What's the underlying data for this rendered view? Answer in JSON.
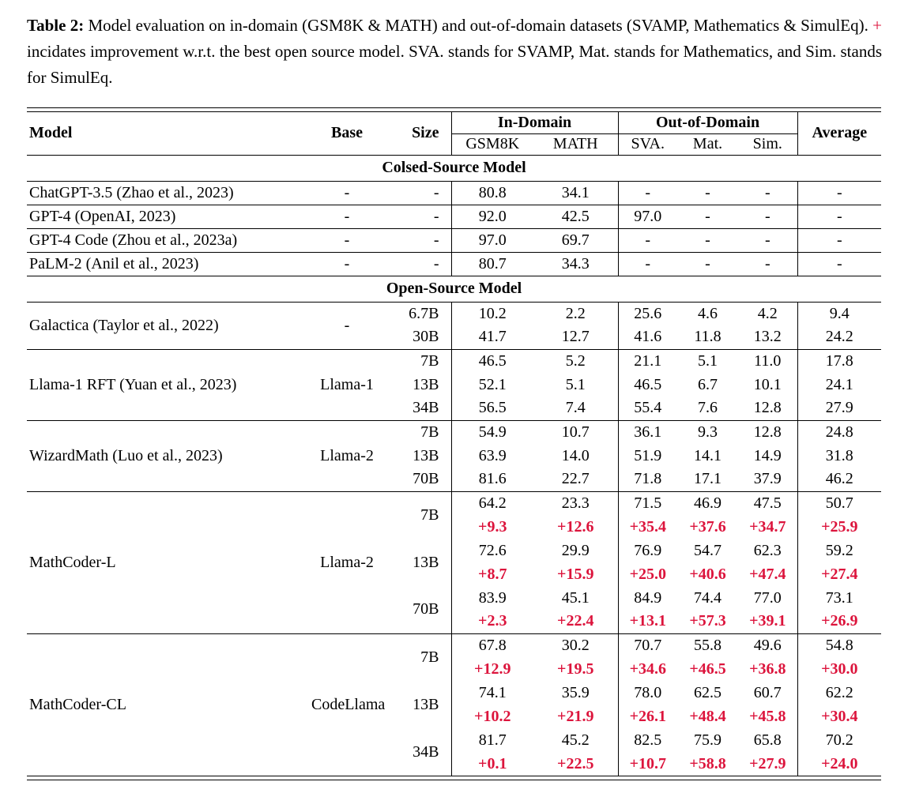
{
  "caption": {
    "label": "Table 2:",
    "before_plus": "Model evaluation on in-domain (GSM8K & MATH) and out-of-domain datasets (SVAMP, Mathematics & SimulEq).",
    "plus": "+",
    "after_plus": "incidates improvement w.r.t. the best open source model. SVA. stands for SVAMP, Mat. stands for Mathematics, and Sim. stands for SimulEq."
  },
  "colors": {
    "accent_red": "#DC143C",
    "text": "#000000",
    "background": "#FFFFFF"
  },
  "table": {
    "header": {
      "model": "Model",
      "base": "Base",
      "size": "Size",
      "in_domain": "In-Domain",
      "out_domain": "Out-of-Domain",
      "average": "Average",
      "sub": [
        "GSM8K",
        "MATH",
        "SVA.",
        "Mat.",
        "Sim."
      ]
    },
    "sections": [
      {
        "title": "Colsed-Source Model",
        "groups": [
          {
            "model": "ChatGPT-3.5 (Zhao et al., 2023)",
            "base": "-",
            "rows": [
              {
                "size": "-",
                "values": [
                  "80.8",
                  "34.1",
                  "-",
                  "-",
                  "-",
                  "-"
                ]
              }
            ]
          },
          {
            "model": "GPT-4 (OpenAI, 2023)",
            "base": "-",
            "rows": [
              {
                "size": "-",
                "values": [
                  "92.0",
                  "42.5",
                  "97.0",
                  "-",
                  "-",
                  "-"
                ]
              }
            ]
          },
          {
            "model": "GPT-4 Code (Zhou et al., 2023a)",
            "base": "-",
            "rows": [
              {
                "size": "-",
                "values": [
                  "97.0",
                  "69.7",
                  "-",
                  "-",
                  "-",
                  "-"
                ]
              }
            ]
          },
          {
            "model": "PaLM-2 (Anil et al., 2023)",
            "base": "-",
            "rows": [
              {
                "size": "-",
                "values": [
                  "80.7",
                  "34.3",
                  "-",
                  "-",
                  "-",
                  "-"
                ]
              }
            ]
          }
        ]
      },
      {
        "title": "Open-Source Model",
        "groups": [
          {
            "model": "Galactica (Taylor et al., 2022)",
            "base": "-",
            "rows": [
              {
                "size": "6.7B",
                "values": [
                  "10.2",
                  "2.2",
                  "25.6",
                  "4.6",
                  "4.2",
                  "9.4"
                ]
              },
              {
                "size": "30B",
                "values": [
                  "41.7",
                  "12.7",
                  "41.6",
                  "11.8",
                  "13.2",
                  "24.2"
                ]
              }
            ]
          },
          {
            "model": "Llama-1 RFT (Yuan et al., 2023)",
            "base": "Llama-1",
            "rows": [
              {
                "size": "7B",
                "values": [
                  "46.5",
                  "5.2",
                  "21.1",
                  "5.1",
                  "11.0",
                  "17.8"
                ]
              },
              {
                "size": "13B",
                "values": [
                  "52.1",
                  "5.1",
                  "46.5",
                  "6.7",
                  "10.1",
                  "24.1"
                ]
              },
              {
                "size": "34B",
                "values": [
                  "56.5",
                  "7.4",
                  "55.4",
                  "7.6",
                  "12.8",
                  "27.9"
                ]
              }
            ]
          },
          {
            "model": "WizardMath (Luo et al., 2023)",
            "base": "Llama-2",
            "rows": [
              {
                "size": "7B",
                "values": [
                  "54.9",
                  "10.7",
                  "36.1",
                  "9.3",
                  "12.8",
                  "24.8"
                ]
              },
              {
                "size": "13B",
                "values": [
                  "63.9",
                  "14.0",
                  "51.9",
                  "14.1",
                  "14.9",
                  "31.8"
                ]
              },
              {
                "size": "70B",
                "values": [
                  "81.6",
                  "22.7",
                  "71.8",
                  "17.1",
                  "37.9",
                  "46.2"
                ]
              }
            ]
          },
          {
            "model": "MathCoder-L",
            "base": "Llama-2",
            "rows": [
              {
                "size": "7B",
                "values": [
                  "64.2",
                  "23.3",
                  "71.5",
                  "46.9",
                  "47.5",
                  "50.7"
                ],
                "delta": [
                  "+9.3",
                  "+12.6",
                  "+35.4",
                  "+37.6",
                  "+34.7",
                  "+25.9"
                ]
              },
              {
                "size": "13B",
                "values": [
                  "72.6",
                  "29.9",
                  "76.9",
                  "54.7",
                  "62.3",
                  "59.2"
                ],
                "delta": [
                  "+8.7",
                  "+15.9",
                  "+25.0",
                  "+40.6",
                  "+47.4",
                  "+27.4"
                ]
              },
              {
                "size": "70B",
                "values": [
                  "83.9",
                  "45.1",
                  "84.9",
                  "74.4",
                  "77.0",
                  "73.1"
                ],
                "delta": [
                  "+2.3",
                  "+22.4",
                  "+13.1",
                  "+57.3",
                  "+39.1",
                  "+26.9"
                ]
              }
            ]
          },
          {
            "model": "MathCoder-CL",
            "base": "CodeLlama",
            "rows": [
              {
                "size": "7B",
                "values": [
                  "67.8",
                  "30.2",
                  "70.7",
                  "55.8",
                  "49.6",
                  "54.8"
                ],
                "delta": [
                  "+12.9",
                  "+19.5",
                  "+34.6",
                  "+46.5",
                  "+36.8",
                  "+30.0"
                ]
              },
              {
                "size": "13B",
                "values": [
                  "74.1",
                  "35.9",
                  "78.0",
                  "62.5",
                  "60.7",
                  "62.2"
                ],
                "delta": [
                  "+10.2",
                  "+21.9",
                  "+26.1",
                  "+48.4",
                  "+45.8",
                  "+30.4"
                ]
              },
              {
                "size": "34B",
                "values": [
                  "81.7",
                  "45.2",
                  "82.5",
                  "75.9",
                  "65.8",
                  "70.2"
                ],
                "delta": [
                  "+0.1",
                  "+22.5",
                  "+10.7",
                  "+58.8",
                  "+27.9",
                  "+24.0"
                ]
              }
            ]
          }
        ]
      }
    ]
  }
}
